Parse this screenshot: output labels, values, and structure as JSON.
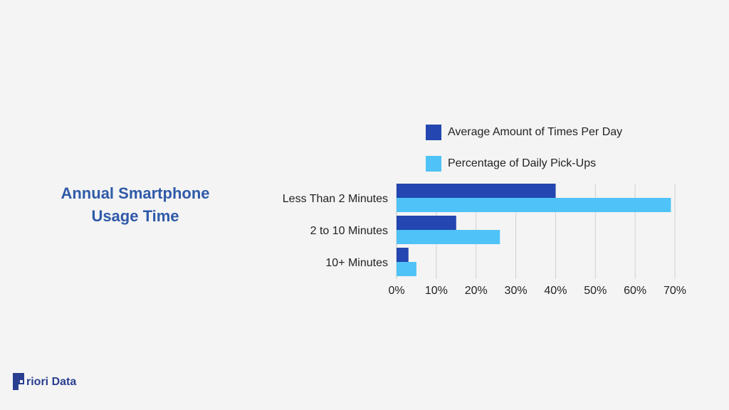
{
  "chart_data": {
    "type": "bar",
    "orientation": "horizontal",
    "title_lines": [
      "Annual Smartphone",
      "Usage Time"
    ],
    "categories": [
      "Less Than 2 Minutes",
      "2 to 10 Minutes",
      "10+ Minutes"
    ],
    "series": [
      {
        "name": "Average Amount of Times Per Day",
        "color": "#2346b0",
        "values": [
          40,
          15,
          3
        ]
      },
      {
        "name": "Percentage of Daily Pick-Ups",
        "color": "#4fc3f7",
        "values": [
          69,
          26,
          5
        ]
      }
    ],
    "xlim": [
      0,
      70
    ],
    "x_ticks": [
      0,
      10,
      20,
      30,
      40,
      50,
      60,
      70
    ],
    "x_tick_labels": [
      "0%",
      "10%",
      "20%",
      "30%",
      "40%",
      "50%",
      "60%",
      "70%"
    ],
    "grid": "vertical",
    "legend_position": "top"
  },
  "brand": {
    "logo_text": "riori Data",
    "color": "#2a3f8f"
  }
}
